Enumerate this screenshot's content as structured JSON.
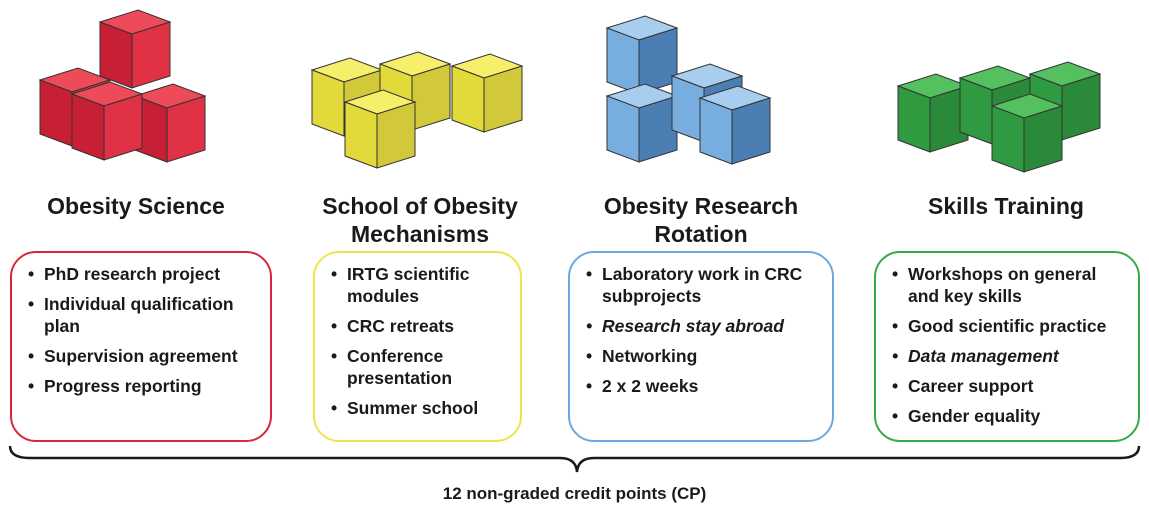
{
  "colors": {
    "red": "#d7263d",
    "yellow": "#eee54a",
    "blue": "#6fa8dc",
    "green": "#3aa84a"
  },
  "columns": [
    {
      "title": "Obesity Science",
      "items": [
        "PhD research project",
        "Individual qualification plan",
        "Supervision agreement",
        "Progress reporting"
      ]
    },
    {
      "title": "School of Obesity Mechanisms",
      "items": [
        "IRTG scientific modules",
        "CRC retreats",
        "Conference presentation",
        "Summer school"
      ]
    },
    {
      "title": "Obesity Research Rotation",
      "items": [
        "Laboratory work in CRC subprojects",
        "Research stay abroad",
        "Networking",
        "2 x 2 weeks"
      ]
    },
    {
      "title": "Skills Training",
      "items": [
        "Workshops on general and key skills",
        "Good scientific practice",
        "Data management",
        "Career support",
        "Gender equality"
      ]
    }
  ],
  "footer": "12 non-graded credit points (CP)"
}
